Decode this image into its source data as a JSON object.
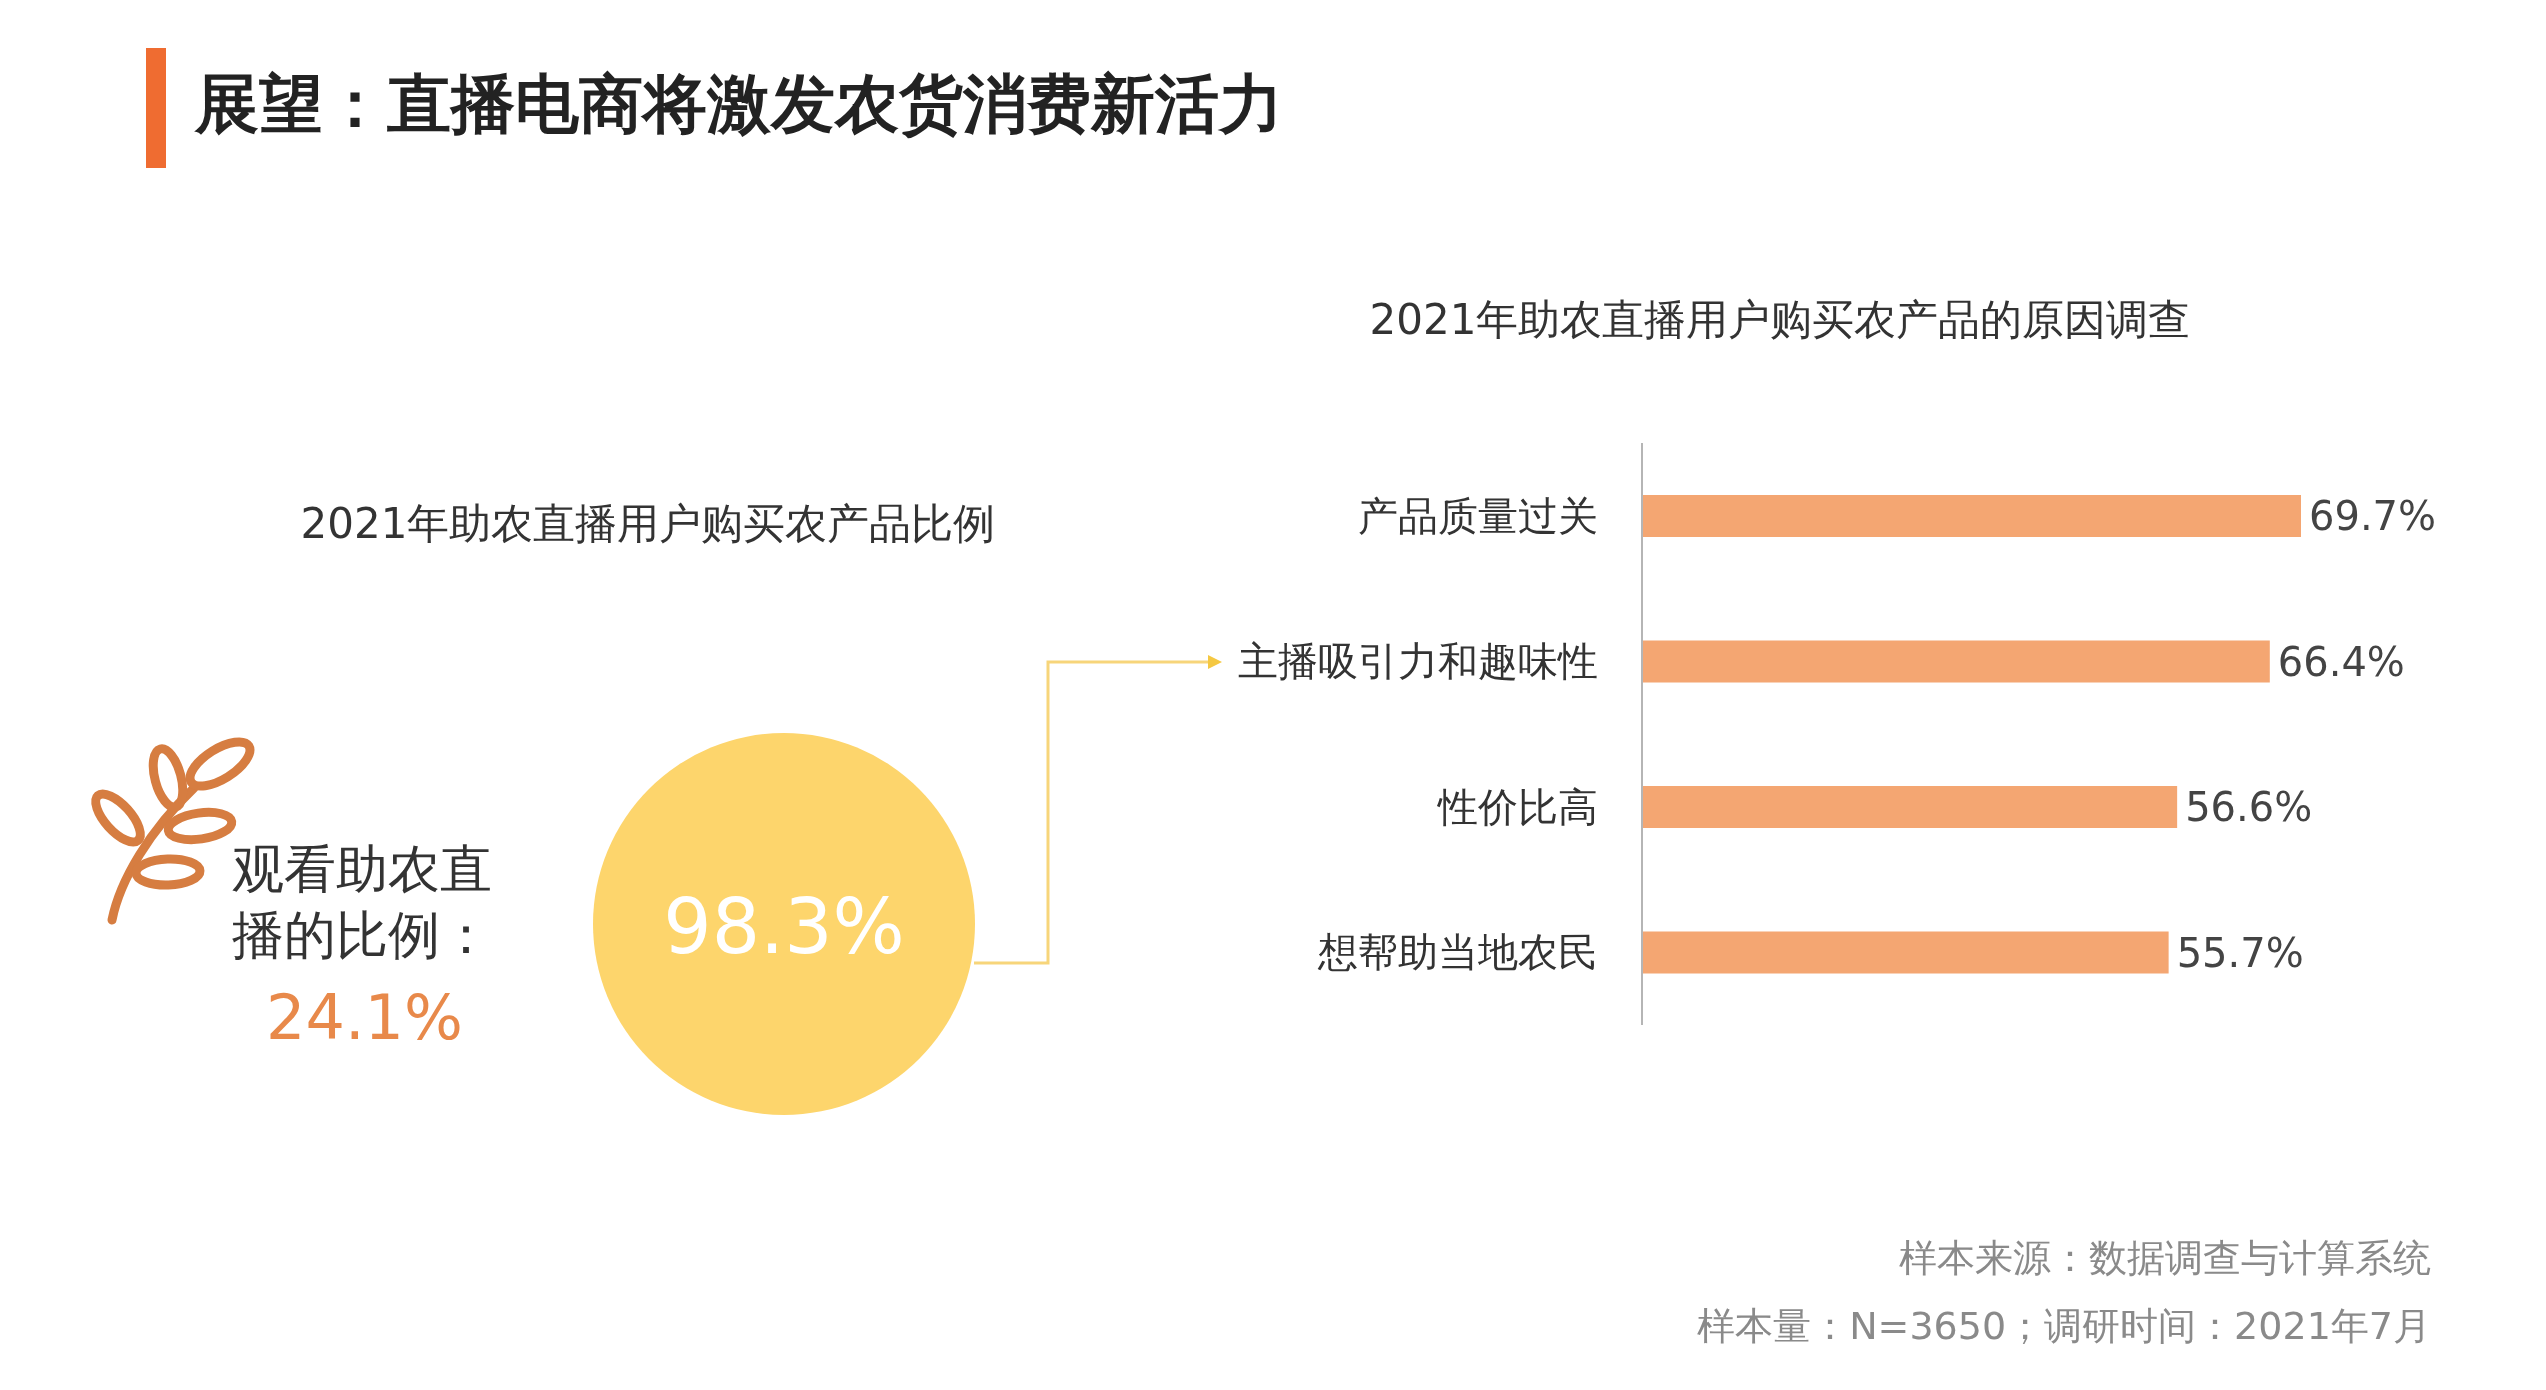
{
  "chart_data": [
    {
      "type": "other",
      "title": "展望：直播电商将激发农货消费新活力",
      "subtitle": "2021年助农直播用户购买农产品比例",
      "values": [
        98.3
      ],
      "value_labels": [
        "98.3%"
      ],
      "color": "#fdd56c",
      "annotations": [
        "观看助农直播的比例：",
        "24.1%"
      ]
    },
    {
      "type": "bar",
      "orientation": "horizontal",
      "title": "2021年助农直播用户购买农产品的原因调查",
      "categories": [
        "产品质量过关",
        "主播吸引力和趣味性",
        "性价比高",
        "想帮助当地农民"
      ],
      "values": [
        69.7,
        66.4,
        56.6,
        55.7
      ],
      "value_labels": [
        "69.7%",
        "66.4%",
        "56.6%",
        "55.7%"
      ],
      "color": "#f4a672",
      "annotations": [
        "样本来源：数据调查与计算系统",
        "样本量：N=3650；调研时间：2021年7月"
      ]
    }
  ]
}
